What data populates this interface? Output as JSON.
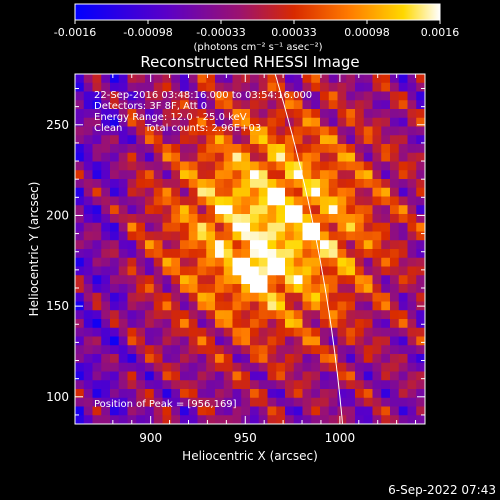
{
  "chart_data": {
    "type": "heatmap",
    "title": "Reconstructed RHESSI Image",
    "xlabel": "Heliocentric X (arcsec)",
    "ylabel": "Heliocentric Y (arcsec)",
    "xlim": [
      860,
      1045
    ],
    "ylim": [
      85,
      278
    ],
    "x_ticks": [
      900,
      950,
      1000
    ],
    "y_ticks": [
      100,
      150,
      200,
      250
    ],
    "colorbar": {
      "range": [
        -0.0016,
        0.0016
      ],
      "ticks": [
        "-0.0016",
        "-0.00098",
        "-0.00033",
        "0.00033",
        "0.00098",
        "0.0016"
      ],
      "units": "(photons cm⁻² s⁻¹ asec⁻²)",
      "colors": [
        "#0000ff",
        "#5a00c8",
        "#9b1270",
        "#d82a00",
        "#ff7a00",
        "#ffd800",
        "#ffffff"
      ]
    },
    "peak": {
      "x": 956,
      "y": 169
    },
    "annotations": {
      "time_range": "22-Sep-2016 03:48:16.000 to 03:54:16.000",
      "detectors": "Detectors: 3F 8F, Att 0",
      "energy_range": "Energy Range: 12.0 - 25.0 keV",
      "clean_label": "Clean",
      "total_counts": "Total counts: 2.96E+03",
      "peak_label": "Position of Peak = [956,169]"
    },
    "limb": true
  },
  "footer": {
    "timestamp": "6-Sep-2022 07:43"
  }
}
